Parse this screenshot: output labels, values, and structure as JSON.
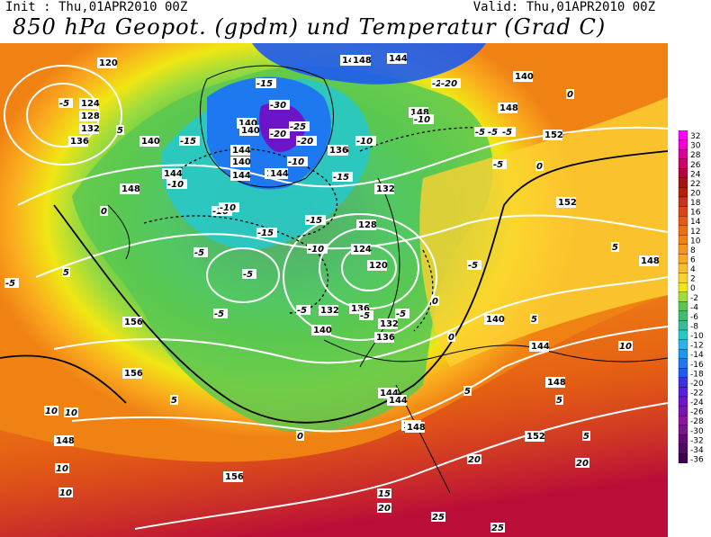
{
  "header": {
    "init": "Init : Thu,01APR2010 00Z",
    "valid": "Valid: Thu,01APR2010 00Z",
    "title": "850 hPa Geopot. (gpdm) und Temperatur (Grad C)"
  },
  "legend": {
    "values": [
      "32",
      "30",
      "28",
      "26",
      "24",
      "22",
      "20",
      "18",
      "16",
      "14",
      "12",
      "10",
      "8",
      "6",
      "4",
      "2",
      "0",
      "-2",
      "-4",
      "-6",
      "-8",
      "-10",
      "-12",
      "-14",
      "-16",
      "-18",
      "-20",
      "-22",
      "-24",
      "-26",
      "-28",
      "-30",
      "-32",
      "-34",
      "-36"
    ],
    "colors": [
      "#ff00ff",
      "#ee00cc",
      "#dd0099",
      "#cc0066",
      "#b4003c",
      "#a51414",
      "#b91e0a",
      "#c8321e",
      "#dc4614",
      "#e65a14",
      "#eb6e14",
      "#f08214",
      "#f5961e",
      "#faaa1e",
      "#fcbe28",
      "#fcd232",
      "#f0e614",
      "#a0dc3c",
      "#5ac850",
      "#3cbe6e",
      "#32be96",
      "#28c8c8",
      "#28b4e6",
      "#1e96f0",
      "#1e78f0",
      "#1e5af0",
      "#3c32dc",
      "#5a1edc",
      "#6e14c8",
      "#7814b4",
      "#8c14a0",
      "#78148c",
      "#640a78",
      "#500a64",
      "#3c0050"
    ]
  },
  "map": {
    "geopot_labels": [
      "120",
      "124",
      "128",
      "132",
      "136",
      "140",
      "140",
      "144",
      "148",
      "148",
      "152",
      "152",
      "156",
      "156",
      "144",
      "140",
      "136",
      "132",
      "128",
      "124",
      "120",
      "140",
      "136",
      "132",
      "144",
      "148",
      "152",
      "148",
      "144",
      "148",
      "140",
      "144",
      "148",
      "140",
      "144",
      "144",
      "148",
      "148",
      "156",
      "148",
      "144",
      "136",
      "132",
      "140",
      "136",
      "144",
      "148"
    ],
    "temp_labels": [
      "-5",
      "-10",
      "-15",
      "-15",
      "-20",
      "-30",
      "-25",
      "-20",
      "-20",
      "-15",
      "-10",
      "-10",
      "-5",
      "-5",
      "-10",
      "-15",
      "-10",
      "-5",
      "-5",
      "-5",
      "-5",
      "-5",
      "0",
      "0",
      "0",
      "0",
      "0",
      "5",
      "5",
      "5",
      "5",
      "5",
      "5",
      "5",
      "10",
      "10",
      "10",
      "10",
      "10",
      "15",
      "20",
      "20",
      "20",
      "25",
      "25",
      "-15",
      "-5",
      "-5",
      "-20",
      "-5",
      "-5",
      "0",
      "5",
      "-10",
      "-10",
      "-5"
    ]
  }
}
